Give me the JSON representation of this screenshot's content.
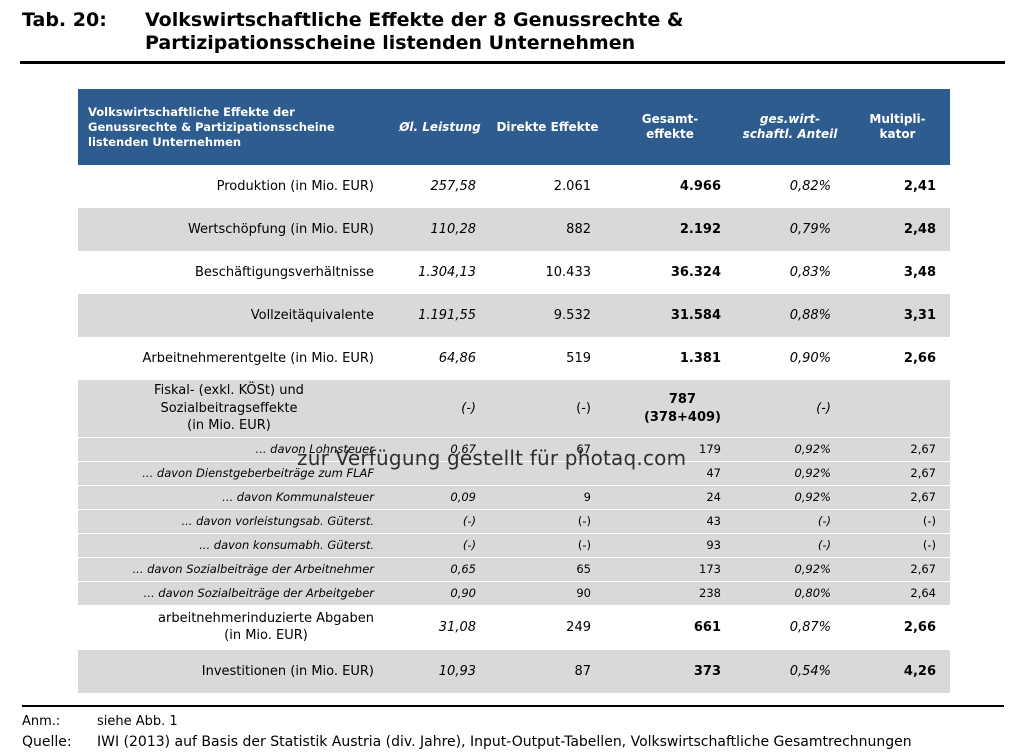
{
  "title": {
    "label": "Tab. 20:",
    "text": "Volkswirtschaftliche Effekte der 8 Genussrechte &\nPartizipationsscheine listenden Unternehmen"
  },
  "colors": {
    "header_bg": "#2e5c8e",
    "band_gray": "#d9d9d9"
  },
  "table": {
    "header": {
      "col_label": "Volkswirtschaftliche Effekte der\nGenussrechte & Partizipationsscheine\nlistenden Unternehmen",
      "col_oel": "Øl. Leistung",
      "col_direkte": "Direkte Effekte",
      "col_gesamt": "Gesamt-\neffekte",
      "col_anteil": "ges.wirt-\nschaftl. Anteil",
      "col_mult": "Multipli-\nkator"
    },
    "rows": [
      {
        "label": "Produktion (in Mio. EUR)",
        "oel": "257,58",
        "direkte": "2.061",
        "gesamt": "4.966",
        "anteil": "0,82%",
        "mult": "2,41"
      },
      {
        "label": "Wertschöpfung (in Mio. EUR)",
        "oel": "110,28",
        "direkte": "882",
        "gesamt": "2.192",
        "anteil": "0,79%",
        "mult": "2,48"
      },
      {
        "label": "Beschäftigungsverhältnisse",
        "oel": "1.304,13",
        "direkte": "10.433",
        "gesamt": "36.324",
        "anteil": "0,83%",
        "mult": "3,48"
      },
      {
        "label": "Vollzeitäquivalente",
        "oel": "1.191,55",
        "direkte": "9.532",
        "gesamt": "31.584",
        "anteil": "0,88%",
        "mult": "3,31"
      },
      {
        "label": "Arbeitnehmerentgelte (in Mio. EUR)",
        "oel": "64,86",
        "direkte": "519",
        "gesamt": "1.381",
        "anteil": "0,90%",
        "mult": "2,66"
      },
      {
        "label": "Fiskal- (exkl. KÖSt) und Sozialbeitragseffekte\n(in Mio. EUR)",
        "oel": "(-)",
        "direkte": "(-)",
        "gesamt": "787\n(378+409)",
        "anteil": "(-)",
        "mult": ""
      },
      {
        "label": "... davon Lohnsteuer",
        "oel": "0,67",
        "direkte": "67",
        "gesamt": "179",
        "anteil": "0,92%",
        "mult": "2,67"
      },
      {
        "label": "... davon Dienstgeberbeiträge zum FLAF",
        "oel": "",
        "direkte": "",
        "gesamt": "47",
        "anteil": "0,92%",
        "mult": "2,67"
      },
      {
        "label": "... davon Kommunalsteuer",
        "oel": "0,09",
        "direkte": "9",
        "gesamt": "24",
        "anteil": "0,92%",
        "mult": "2,67"
      },
      {
        "label": "... davon vorleistungsab. Güterst.",
        "oel": "(-)",
        "direkte": "(-)",
        "gesamt": "43",
        "anteil": "(-)",
        "mult": "(-)"
      },
      {
        "label": "... davon konsumabh. Güterst.",
        "oel": "(-)",
        "direkte": "(-)",
        "gesamt": "93",
        "anteil": "(-)",
        "mult": "(-)"
      },
      {
        "label": "... davon Sozialbeiträge der Arbeitnehmer",
        "oel": "0,65",
        "direkte": "65",
        "gesamt": "173",
        "anteil": "0,92%",
        "mult": "2,67"
      },
      {
        "label": "... davon Sozialbeiträge der Arbeitgeber",
        "oel": "0,90",
        "direkte": "90",
        "gesamt": "238",
        "anteil": "0,80%",
        "mult": "2,64"
      },
      {
        "label": "arbeitnehmerinduzierte Abgaben\n(in Mio. EUR)",
        "oel": "31,08",
        "direkte": "249",
        "gesamt": "661",
        "anteil": "0,87%",
        "mult": "2,66"
      },
      {
        "label": "Investitionen (in Mio. EUR)",
        "oel": "10,93",
        "direkte": "87",
        "gesamt": "373",
        "anteil": "0,54%",
        "mult": "4,26"
      }
    ]
  },
  "watermark": "zur Verfügung gestellt für photaq.com",
  "footer": {
    "anm_label": "Anm.:",
    "anm_text": "siehe Abb. 1",
    "quelle_label": "Quelle:",
    "quelle_text": "IWI (2013) auf Basis der Statistik Austria (div. Jahre), Input-Output-Tabellen, Volkswirtschaftliche Gesamtrechnungen"
  }
}
